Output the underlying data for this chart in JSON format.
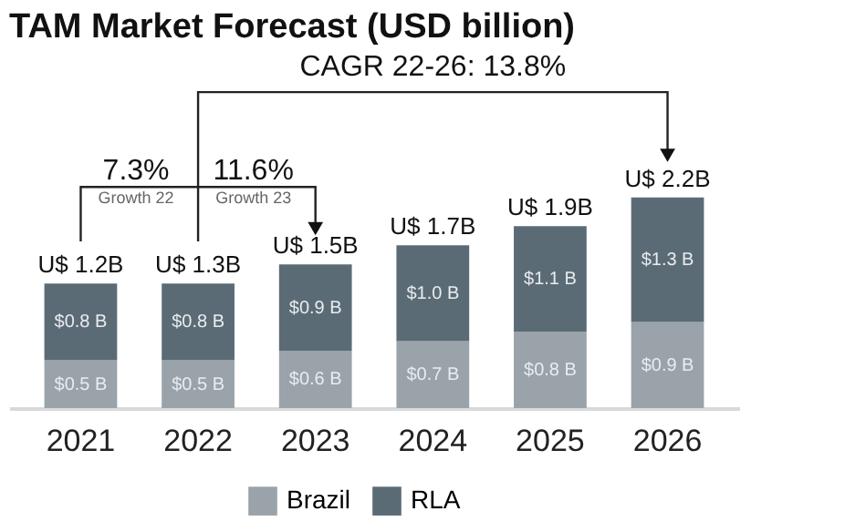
{
  "chart_data": {
    "type": "bar",
    "title": "TAM Market Forecast (USD billion)",
    "categories": [
      "2021",
      "2022",
      "2023",
      "2024",
      "2025",
      "2026"
    ],
    "stacked": true,
    "tick_labels": "x",
    "grid": false,
    "legend": "bottom",
    "series": [
      {
        "name": "Brazil",
        "color": "#9aa3aa",
        "values": [
          0.5,
          0.5,
          0.6,
          0.7,
          0.8,
          0.9
        ],
        "value_labels": [
          "$0.5 B",
          "$0.5 B",
          "$0.6 B",
          "$0.7 B",
          "$0.8 B",
          "$0.9 B"
        ]
      },
      {
        "name": "RLA",
        "color": "#5b6b76",
        "values": [
          0.8,
          0.8,
          0.9,
          1.0,
          1.1,
          1.3
        ],
        "value_labels": [
          "$0.8 B",
          "$0.8 B",
          "$0.9 B",
          "$1.0 B",
          "$1.1 B",
          "$1.3 B"
        ]
      }
    ],
    "totals": [
      "U$ 1.2B",
      "U$ 1.3B",
      "U$ 1.5B",
      "U$ 1.7B",
      "U$ 1.9B",
      "U$ 2.2B"
    ],
    "annotations": [
      "CAGR 22-26: 13.8%",
      "7.3%",
      "Growth 22",
      "11.6%",
      "Growth 23"
    ]
  }
}
